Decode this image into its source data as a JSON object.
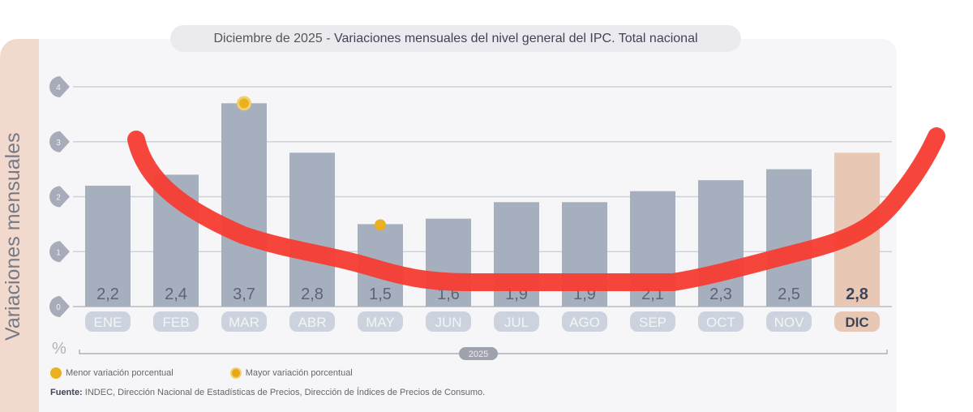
{
  "chart_data": {
    "type": "bar",
    "title_prefix": "Diciembre de 2025",
    "title": "Variaciones mensuales del nivel general del IPC. Total nacional",
    "ylabel": "Variaciones mensuales",
    "yunit": "%",
    "ylim": [
      0,
      4
    ],
    "yticks": [
      "0",
      "1",
      "2",
      "3",
      "4"
    ],
    "categories": [
      "ENE",
      "FEB",
      "MAR",
      "ABR",
      "MAY",
      "JUN",
      "JUL",
      "AGO",
      "SEP",
      "OCT",
      "NOV",
      "DIC"
    ],
    "values": [
      2.2,
      2.4,
      3.7,
      2.8,
      1.5,
      1.6,
      1.9,
      1.9,
      2.1,
      2.3,
      2.5,
      2.8
    ],
    "value_labels": [
      "2,2",
      "2,4",
      "3,7",
      "2,8",
      "1,5",
      "1,6",
      "1,9",
      "1,9",
      "2,1",
      "2,3",
      "2,5",
      "2,8"
    ],
    "year_label": "2025",
    "highlight_index": 11,
    "min_marker_index": 4,
    "max_marker_index": 2,
    "colors": {
      "bar": "#a5afbe",
      "highlight": "#e8c8b4",
      "marker": "#eab020",
      "annotation": "#f53c32"
    },
    "grid": true
  },
  "legend": {
    "min": "Menor variación porcentual",
    "max": "Mayor variación porcentual"
  },
  "source": {
    "label": "Fuente:",
    "text": "INDEC, Dirección Nacional de Estadísticas de Precios, Dirección de Índices de Precios de Consumo."
  }
}
